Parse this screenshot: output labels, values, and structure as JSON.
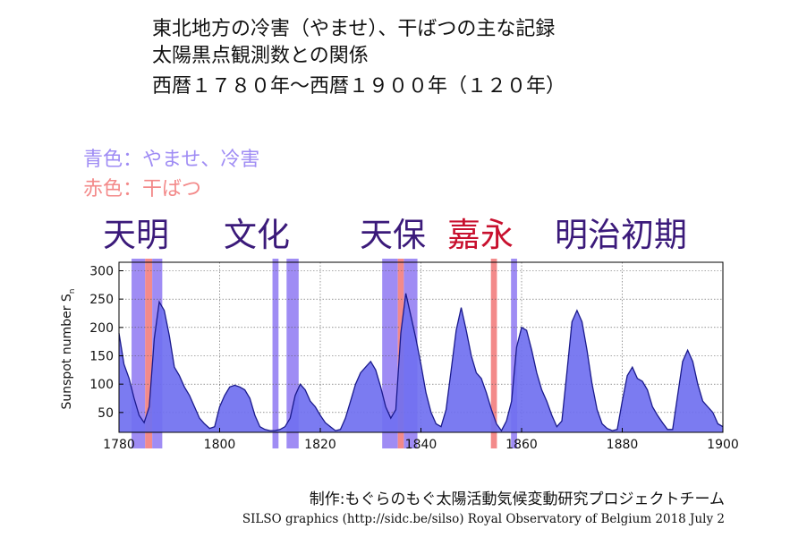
{
  "header": {
    "line1": "東北地方の冷害（やませ）、干ばつの主な記録",
    "line2": "太陽黒点観測数との関係",
    "line3": "西暦１７８０年〜西暦１９００年（１２０年）"
  },
  "legend": {
    "blue": "青色：やませ、冷害",
    "red": "赤色：干ばつ"
  },
  "eras": [
    {
      "label": "天明",
      "kind": "cold"
    },
    {
      "label": "文化",
      "kind": "cold"
    },
    {
      "label": "天保",
      "kind": "cold"
    },
    {
      "label": "嘉永",
      "kind": "drought"
    },
    {
      "label": "明治初期",
      "kind": "cold"
    }
  ],
  "colors": {
    "cold_band": "#9f8cf4",
    "drought_band": "#f38a8a",
    "area_fill": "#7070f0",
    "area_line": "#1a1a8c",
    "cold_text": "#3b1a7a",
    "drought_text": "#c8102e"
  },
  "chart_data": {
    "type": "area",
    "ylabel": "Sunspot number S",
    "ylabel_sub": "n",
    "xlim": [
      1780,
      1900
    ],
    "ylim": [
      15,
      315
    ],
    "xticks": [
      1780,
      1800,
      1820,
      1840,
      1860,
      1880,
      1900
    ],
    "yticks": [
      50,
      100,
      150,
      200,
      250,
      300
    ],
    "grid": true,
    "series": [
      {
        "x": [
          1780,
          1781,
          1782,
          1783,
          1784,
          1785,
          1786,
          1787,
          1788,
          1789,
          1790,
          1791,
          1792,
          1793,
          1794,
          1795,
          1796,
          1797,
          1798,
          1799,
          1800,
          1801,
          1802,
          1803,
          1804,
          1805,
          1806,
          1807,
          1808,
          1809,
          1810,
          1811,
          1812,
          1813,
          1814,
          1815,
          1816,
          1817,
          1818,
          1819,
          1820,
          1821,
          1822,
          1823,
          1824,
          1825,
          1826,
          1827,
          1828,
          1829,
          1830,
          1831,
          1832,
          1833,
          1834,
          1835,
          1836,
          1837,
          1838,
          1839,
          1840,
          1841,
          1842,
          1843,
          1844,
          1845,
          1846,
          1847,
          1848,
          1849,
          1850,
          1851,
          1852,
          1853,
          1854,
          1855,
          1856,
          1857,
          1858,
          1859,
          1860,
          1861,
          1862,
          1863,
          1864,
          1865,
          1866,
          1867,
          1868,
          1869,
          1870,
          1871,
          1872,
          1873,
          1874,
          1875,
          1876,
          1877,
          1878,
          1879,
          1880,
          1881,
          1882,
          1883,
          1884,
          1885,
          1886,
          1887,
          1888,
          1889,
          1890,
          1891,
          1892,
          1893,
          1894,
          1895,
          1896,
          1897,
          1898,
          1899,
          1900
        ],
        "values": [
          190,
          135,
          110,
          75,
          45,
          32,
          60,
          180,
          245,
          230,
          185,
          130,
          115,
          95,
          80,
          60,
          40,
          30,
          22,
          25,
          60,
          80,
          95,
          98,
          95,
          90,
          75,
          45,
          25,
          20,
          18,
          18,
          20,
          25,
          40,
          80,
          100,
          90,
          70,
          60,
          45,
          32,
          25,
          18,
          20,
          40,
          70,
          100,
          120,
          130,
          140,
          125,
          95,
          60,
          40,
          55,
          190,
          260,
          220,
          180,
          135,
          85,
          50,
          30,
          25,
          55,
          125,
          195,
          235,
          195,
          150,
          120,
          110,
          85,
          55,
          30,
          18,
          35,
          70,
          165,
          200,
          195,
          160,
          120,
          90,
          70,
          45,
          25,
          35,
          120,
          210,
          230,
          210,
          160,
          100,
          55,
          30,
          22,
          18,
          20,
          70,
          115,
          130,
          110,
          105,
          90,
          60,
          45,
          32,
          20,
          20,
          80,
          140,
          160,
          140,
          100,
          70,
          60,
          50,
          30,
          25
        ]
      }
    ],
    "bands": [
      {
        "x0": 1782.5,
        "x1": 1785.2,
        "kind": "cold",
        "era": "天明"
      },
      {
        "x0": 1785.2,
        "x1": 1786.6,
        "kind": "drought",
        "era": "天明"
      },
      {
        "x0": 1786.6,
        "x1": 1788.6,
        "kind": "cold",
        "era": "天明"
      },
      {
        "x0": 1810.5,
        "x1": 1811.7,
        "kind": "cold",
        "era": "文化"
      },
      {
        "x0": 1813.3,
        "x1": 1815.7,
        "kind": "cold",
        "era": "文化"
      },
      {
        "x0": 1832.3,
        "x1": 1835.4,
        "kind": "cold",
        "era": "天保"
      },
      {
        "x0": 1835.4,
        "x1": 1836.6,
        "kind": "drought",
        "era": "天保"
      },
      {
        "x0": 1836.6,
        "x1": 1839.3,
        "kind": "cold",
        "era": "天保"
      },
      {
        "x0": 1853.9,
        "x1": 1855.1,
        "kind": "drought",
        "era": "嘉永"
      },
      {
        "x0": 1857.9,
        "x1": 1859.1,
        "kind": "cold",
        "era": "明治初期"
      }
    ]
  },
  "footer": {
    "credit": "制作:もぐらのもぐ太陽活動気候変動研究プロジェクトチーム",
    "silso": "SILSO graphics (http://sidc.be/silso)  Royal Observatory of Belgium  2018 July 2"
  }
}
